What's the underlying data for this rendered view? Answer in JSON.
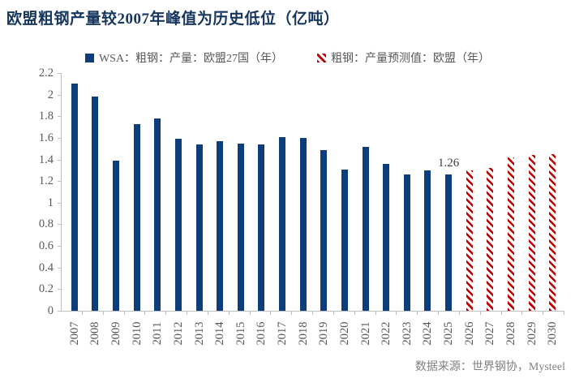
{
  "title": "欧盟粗钢产量较2007年峰值为历史低位（亿吨）",
  "source_note": "数据来源：世界钢协，Mysteel",
  "colors": {
    "title": "#17365d",
    "bar_blue": "#0e3d7c",
    "forecast_red": "#c00000",
    "axis_text": "#595959",
    "axis_line": "#bfbfbf",
    "data_label": "#3f3f3f",
    "source_text": "#808080",
    "background": "#ffffff"
  },
  "legend": [
    {
      "label": "WSA：粗钢：产量：欧盟27国（年）",
      "style": "solid",
      "color": "#0e3d7c"
    },
    {
      "label": "粗钢：产量预测值：欧盟（年）",
      "style": "hatched",
      "color": "#c00000"
    }
  ],
  "chart_data": {
    "type": "bar",
    "title": "欧盟粗钢产量较2007年峰值为历史低位（亿吨）",
    "xlabel": "",
    "ylabel": "",
    "ylim": [
      0,
      2.2
    ],
    "y_ticks": [
      "0",
      "0.2",
      "0.4",
      "0.6",
      "0.8",
      "1",
      "1.2",
      "1.4",
      "1.6",
      "1.8",
      "2",
      "2.2"
    ],
    "grid": false,
    "legend_position": "top",
    "categories": [
      "2007",
      "2008",
      "2009",
      "2010",
      "2011",
      "2012",
      "2013",
      "2014",
      "2015",
      "2016",
      "2017",
      "2018",
      "2019",
      "2020",
      "2021",
      "2022",
      "2023",
      "2024",
      "2025",
      "2026",
      "2027",
      "2028",
      "2029",
      "2030"
    ],
    "series": [
      {
        "name": "WSA：粗钢：产量：欧盟27国（年）",
        "style": "solid",
        "color": "#0e3d7c",
        "values": [
          2.1,
          1.98,
          1.39,
          1.73,
          1.78,
          1.59,
          1.54,
          1.57,
          1.55,
          1.54,
          1.61,
          1.6,
          1.49,
          1.31,
          1.52,
          1.36,
          1.26,
          1.3,
          1.26,
          null,
          null,
          null,
          null,
          null
        ]
      },
      {
        "name": "粗钢：产量预测值：欧盟（年）",
        "style": "hatched",
        "color": "#c00000",
        "values": [
          null,
          null,
          null,
          null,
          null,
          null,
          null,
          null,
          null,
          null,
          null,
          null,
          null,
          null,
          null,
          null,
          null,
          null,
          null,
          1.3,
          1.32,
          1.42,
          1.44,
          1.45
        ]
      }
    ],
    "data_labels": [
      {
        "category": "2025",
        "text": "1.26"
      }
    ]
  }
}
